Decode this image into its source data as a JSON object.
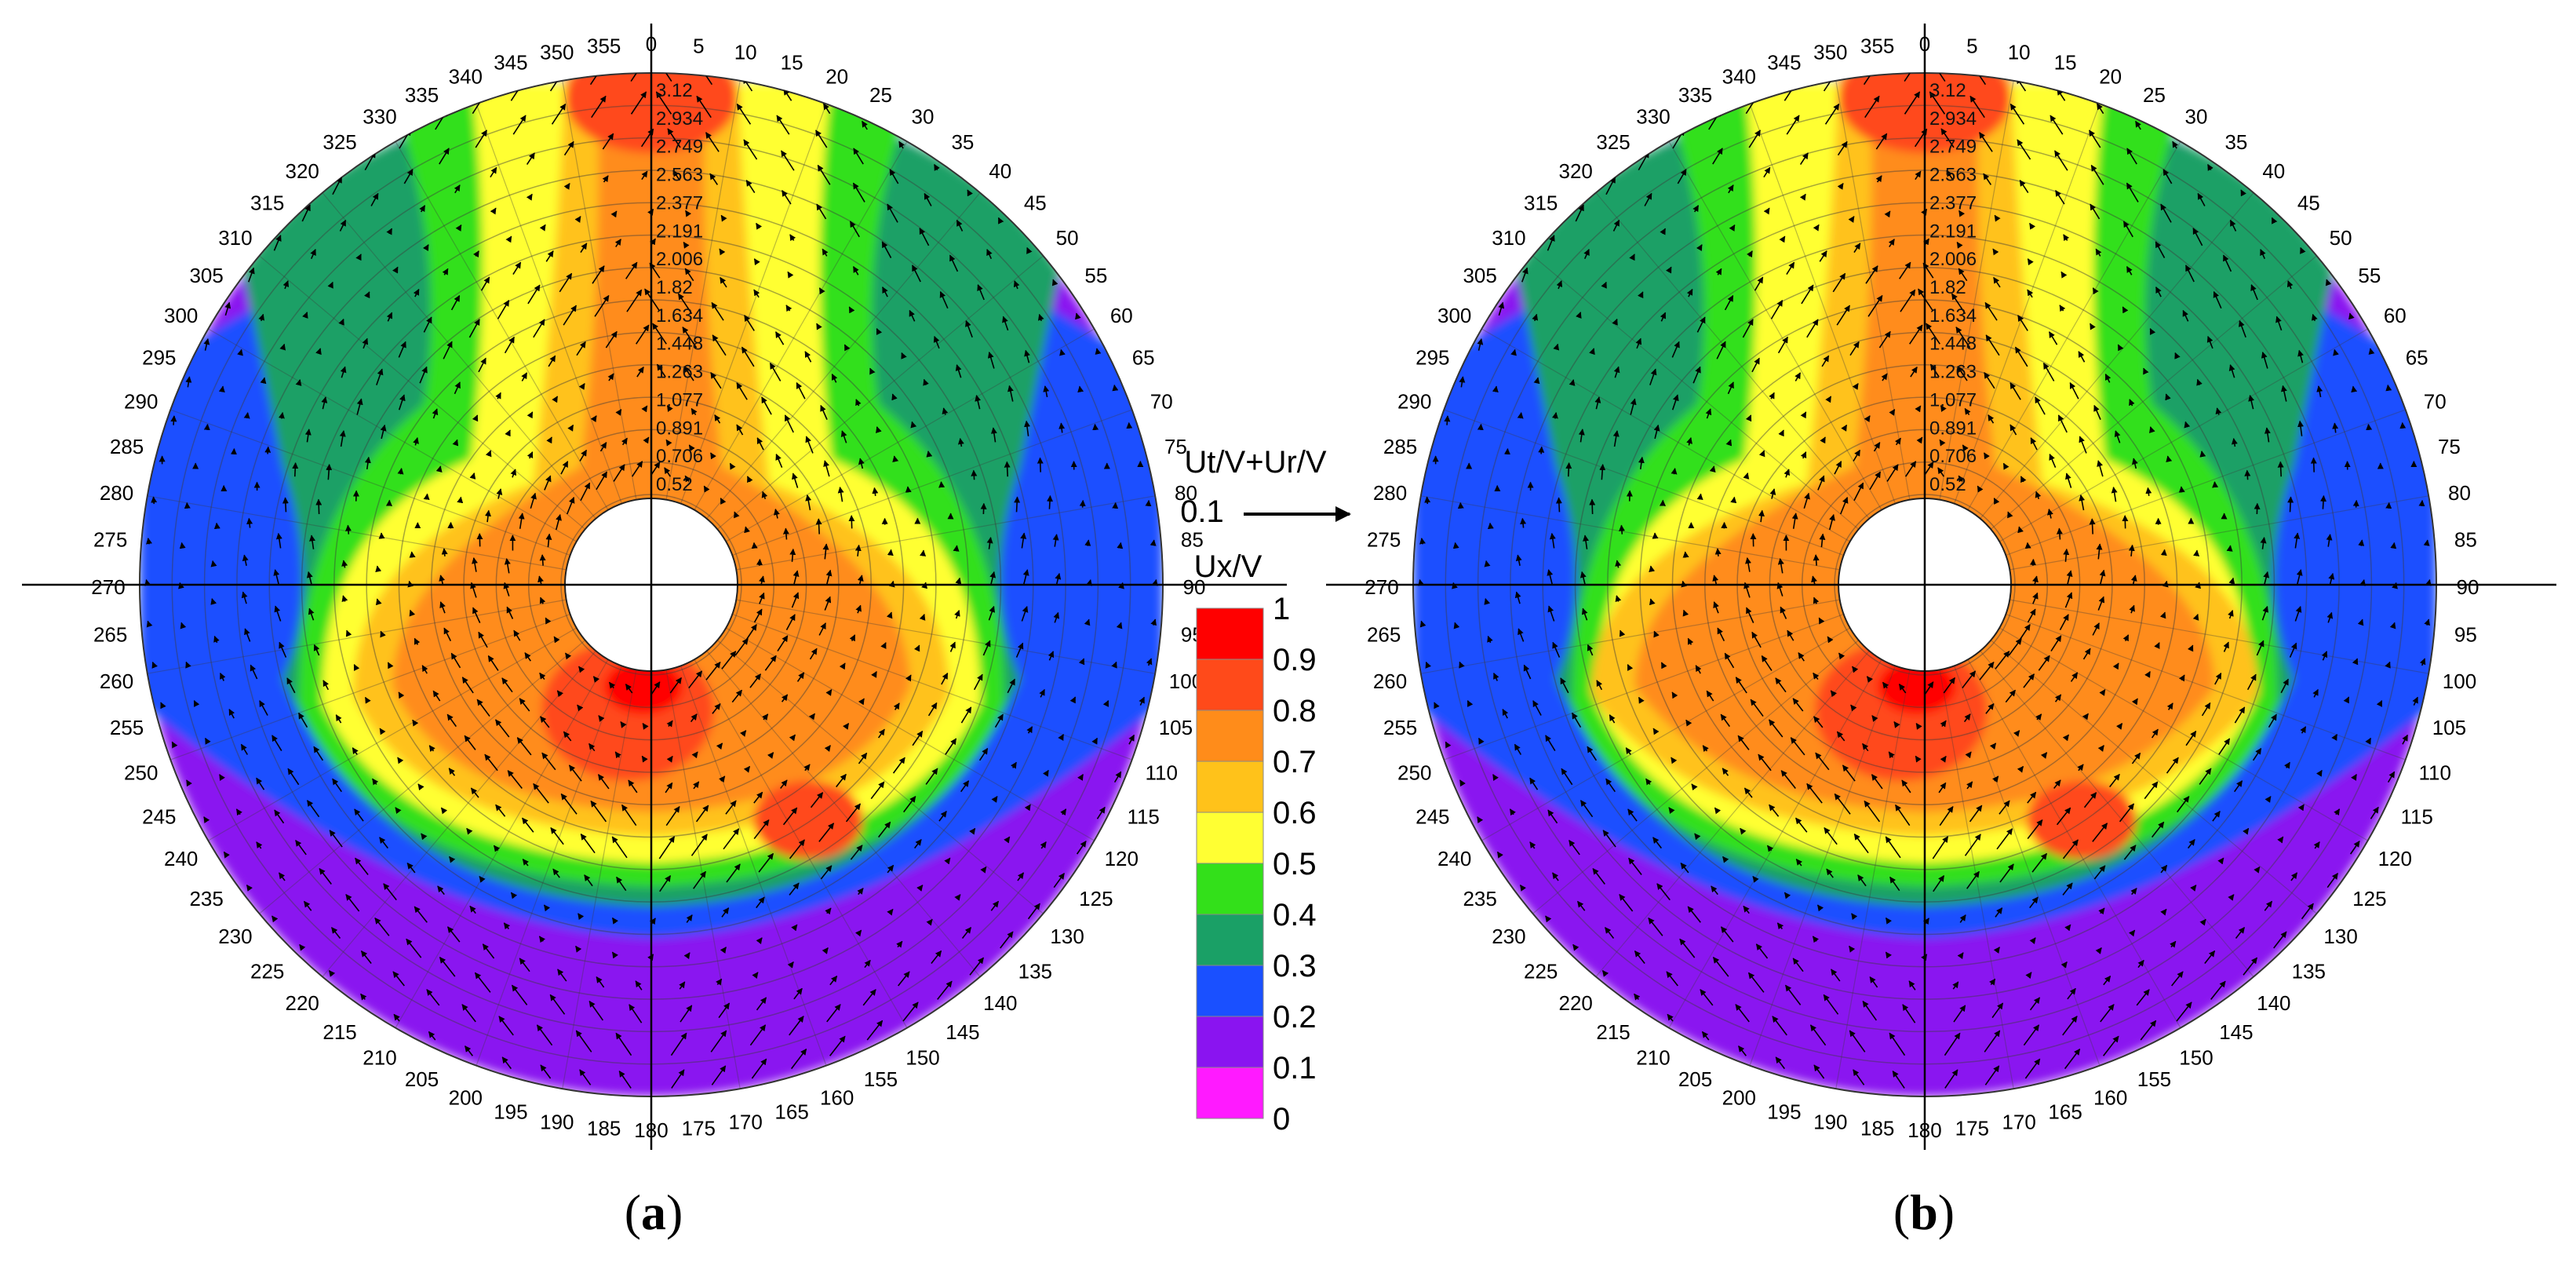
{
  "figure": {
    "panel_a_label": "a",
    "panel_b_label": "b",
    "legend": {
      "vector_title": "Ut/V+Ur/V",
      "vector_ref_value": "0.1",
      "scalar_title": "Ux/V",
      "arrow_glyph": "→"
    }
  },
  "chart_data": [
    {
      "type": "heatmap",
      "subtype": "polar-contour-with-velocity-vectors",
      "panel": "a",
      "angle_labels": [
        "0",
        "5",
        "10",
        "15",
        "20",
        "25",
        "30",
        "35",
        "40",
        "45",
        "50",
        "55",
        "60",
        "65",
        "70",
        "75",
        "80",
        "85",
        "90",
        "95",
        "100",
        "105",
        "110",
        "115",
        "120",
        "125",
        "130",
        "135",
        "140",
        "145",
        "150",
        "155",
        "160",
        "165",
        "170",
        "175",
        "180",
        "185",
        "190",
        "195",
        "200",
        "205",
        "210",
        "215",
        "220",
        "225",
        "230",
        "235",
        "240",
        "245",
        "250",
        "255",
        "260",
        "265",
        "270",
        "275",
        "280",
        "285",
        "290",
        "295",
        "300",
        "305",
        "310",
        "315",
        "320",
        "325",
        "330",
        "335",
        "340",
        "345",
        "350",
        "355"
      ],
      "radial_tick_labels": [
        "3.12",
        "2.934",
        "2.749",
        "2.563",
        "2.377",
        "2.191",
        "2.006",
        "1.82",
        "1.634",
        "1.448",
        "1.263",
        "1.077",
        "0.891",
        "0.706",
        "0.52"
      ],
      "colorbar": {
        "title": "Ux/V",
        "ticks": [
          "1",
          "0.9",
          "0.8",
          "0.7",
          "0.6",
          "0.5",
          "0.4",
          "0.3",
          "0.2",
          "0.1",
          "0"
        ],
        "colors": [
          "#ff0000",
          "#ff4a1a",
          "#ff8c1a",
          "#ffc21a",
          "#ffff33",
          "#33e01a",
          "#1aa066",
          "#1a50ff",
          "#8a14f0",
          "#ff1aff"
        ]
      },
      "vector_reference": {
        "label": "Ut/V+Ur/V",
        "value": 0.1
      },
      "axis_range": {
        "theta_deg": [
          0,
          360
        ],
        "r": [
          0.52,
          3.12
        ]
      }
    },
    {
      "type": "heatmap",
      "subtype": "polar-contour-with-velocity-vectors",
      "panel": "b",
      "angle_labels": [
        "0",
        "5",
        "10",
        "15",
        "20",
        "25",
        "30",
        "35",
        "40",
        "45",
        "50",
        "55",
        "60",
        "65",
        "70",
        "75",
        "80",
        "85",
        "90",
        "95",
        "100",
        "105",
        "110",
        "115",
        "120",
        "125",
        "130",
        "135",
        "140",
        "145",
        "150",
        "155",
        "160",
        "165",
        "170",
        "175",
        "180",
        "185",
        "190",
        "195",
        "200",
        "205",
        "210",
        "215",
        "220",
        "225",
        "230",
        "235",
        "240",
        "245",
        "250",
        "255",
        "260",
        "265",
        "270",
        "275",
        "280",
        "285",
        "290",
        "295",
        "300",
        "305",
        "310",
        "315",
        "320",
        "325",
        "330",
        "335",
        "340",
        "345",
        "350",
        "355"
      ],
      "radial_tick_labels": [
        "3.12",
        "2.934",
        "2.749",
        "2.563",
        "2.377",
        "2.191",
        "2.006",
        "1.82",
        "1.634",
        "1.448",
        "1.263",
        "1.077",
        "0.891",
        "0.706",
        "0.52"
      ],
      "colorbar": {
        "title": "Ux/V",
        "ticks": [
          "1",
          "0.9",
          "0.8",
          "0.7",
          "0.6",
          "0.5",
          "0.4",
          "0.3",
          "0.2",
          "0.1",
          "0"
        ],
        "colors": [
          "#ff0000",
          "#ff4a1a",
          "#ff8c1a",
          "#ffc21a",
          "#ffff33",
          "#33e01a",
          "#1aa066",
          "#1a50ff",
          "#8a14f0",
          "#ff1aff"
        ]
      },
      "vector_reference": {
        "label": "Ut/V+Ur/V",
        "value": 0.1
      },
      "axis_range": {
        "theta_deg": [
          0,
          360
        ],
        "r": [
          0.52,
          3.12
        ]
      }
    }
  ]
}
